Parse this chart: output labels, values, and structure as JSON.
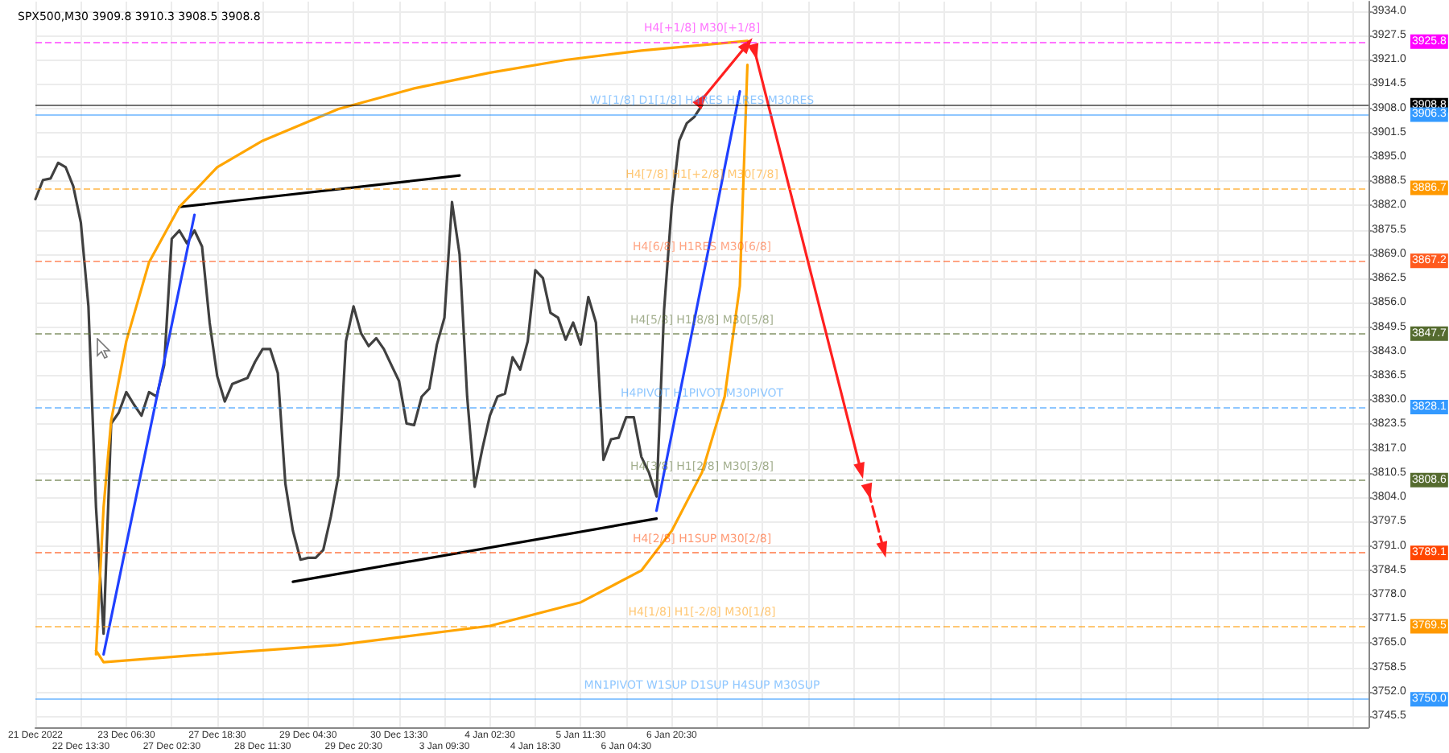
{
  "chart_data": {
    "type": "line",
    "title": "SPX500,M30 3909.8 3910.3 3908.5 3908.8",
    "categories": [
      "21 Dec 2022",
      null,
      null,
      null,
      null,
      null,
      "22 Dec 13:30",
      null,
      null,
      null,
      null,
      null,
      "23 Dec 06:30",
      null,
      null,
      null,
      null,
      null,
      "27 Dec 02:30",
      null,
      null,
      null,
      null,
      null,
      "27 Dec 18:30",
      null,
      null,
      null,
      null,
      null,
      "28 Dec 11:30",
      null,
      null,
      null,
      null,
      null,
      "29 Dec 04:30",
      null,
      null,
      null,
      null,
      null,
      "29 Dec 20:30",
      null,
      null,
      null,
      null,
      null,
      "30 Dec 13:30",
      null,
      null,
      null,
      null,
      null,
      "3 Jan 09:30",
      null,
      null,
      null,
      null,
      null,
      "4 Jan 02:30",
      null,
      null,
      null,
      null,
      null,
      "4 Jan 18:30",
      null,
      null,
      null,
      null,
      null,
      "5 Jan 11:30",
      null,
      null,
      null,
      null,
      null,
      "6 Jan 04:30",
      null,
      null,
      null,
      null,
      null,
      "6 Jan 20:30",
      null,
      null,
      null,
      null,
      null,
      null,
      null,
      null,
      null,
      null,
      null,
      null,
      null,
      null,
      null,
      null,
      null,
      null,
      null,
      null,
      null,
      null,
      null,
      null,
      null,
      null,
      null,
      null,
      null,
      null,
      null,
      null,
      null,
      null,
      null,
      null,
      null,
      null,
      null,
      null,
      null,
      null,
      null,
      null,
      null,
      null,
      null,
      null,
      null,
      null,
      null,
      null,
      null,
      null,
      null,
      null,
      null,
      null,
      null,
      null,
      null,
      null,
      null,
      null,
      null,
      null,
      null,
      null,
      null,
      null,
      null,
      null,
      null,
      null,
      null,
      null,
      null,
      null,
      null,
      null,
      null,
      null,
      null,
      null,
      null,
      null,
      null,
      null,
      null,
      null,
      null,
      null
    ],
    "series": [
      {
        "color": "#404040",
        "values": [
          3883.7,
          3888.8,
          3889.2,
          3893.4,
          3892.2,
          3887.1,
          3877.4,
          3855.0,
          3801.3,
          3767.5,
          3823.7,
          3826.6,
          3832.1,
          3828.8,
          3825.8,
          3832.1,
          3830.9,
          3839.3,
          3873.1,
          3875.3,
          3871.9,
          3875.3,
          3871.0,
          3850.7,
          3836.4,
          3829.6,
          3834.3,
          3835.1,
          3835.9,
          3840.2,
          3843.6,
          3843.6,
          3837.2,
          3807.6,
          3795.0,
          3787.3,
          3787.8,
          3787.8,
          3789.9,
          3798.8,
          3809.7,
          3845.7,
          3855.0,
          3847.8,
          3844.4,
          3846.5,
          3843.6,
          3839.3,
          3835.1,
          3823.7,
          3823.3,
          3830.9,
          3833.0,
          3844.8,
          3852.0,
          3882.9,
          3868.9,
          3830.9,
          3806.8,
          3816.9,
          3825.8,
          3830.9,
          3831.7,
          3841.4,
          3838.1,
          3845.7,
          3864.7,
          3862.6,
          3853.3,
          3852.0,
          3846.1,
          3850.7,
          3844.8,
          3857.5,
          3850.7,
          3814.0,
          3819.5,
          3819.9,
          3825.4,
          3825.4,
          3814.8,
          3810.6,
          3804.2,
          3854.1,
          3881.6,
          3899.3,
          3904.0,
          3905.7,
          3908.8,
          null,
          null,
          null,
          null,
          null,
          null,
          null,
          null,
          null,
          null,
          null,
          null,
          null,
          null,
          null,
          null,
          null,
          null,
          null,
          null,
          null,
          null,
          null,
          null,
          null,
          null,
          null,
          null,
          null,
          null,
          null,
          null,
          null,
          null,
          null,
          null,
          null,
          null,
          null,
          null,
          null,
          null,
          null,
          null,
          null,
          null,
          null,
          null,
          null,
          null,
          null,
          null,
          null,
          null,
          null,
          null,
          null,
          null,
          null,
          null,
          null,
          null,
          null,
          null,
          null,
          null,
          null,
          null,
          null,
          null,
          null,
          null,
          null,
          null,
          null,
          null,
          null,
          null,
          null,
          null,
          null,
          null,
          null,
          null,
          null,
          null,
          null,
          null
        ]
      },
      {
        "color": "#2040ff",
        "values": [
          null,
          null,
          null,
          null,
          null,
          null,
          null,
          null,
          null,
          3762.0,
          null,
          null,
          null,
          null,
          null,
          null,
          null,
          null,
          null,
          null,
          null,
          3879.5,
          null,
          null,
          null,
          null,
          null,
          null,
          null,
          null,
          null,
          null,
          null,
          null,
          null,
          null,
          null,
          null,
          null,
          null,
          null,
          null,
          null,
          null,
          null,
          null,
          null,
          null,
          null,
          null,
          null,
          null,
          null,
          null,
          null,
          null,
          null,
          null,
          null,
          null,
          null,
          null,
          null,
          null,
          null,
          null,
          null,
          null,
          null,
          null,
          null,
          null,
          null,
          null,
          null,
          null,
          null,
          null,
          null,
          null,
          null,
          null,
          null,
          null,
          null,
          null,
          null,
          null,
          null,
          null,
          null,
          null,
          null,
          null,
          null,
          null,
          null,
          null,
          null,
          null,
          null,
          null,
          null,
          null,
          null,
          null,
          null,
          null,
          null,
          null,
          null,
          null,
          null,
          null,
          null,
          null,
          null,
          null,
          null,
          null,
          null,
          null,
          null,
          null,
          null,
          null,
          null,
          null,
          null,
          null,
          null,
          null,
          null,
          null,
          null,
          null,
          null,
          null,
          null,
          null,
          null,
          null,
          null,
          null,
          null,
          null,
          null,
          null,
          null,
          null,
          null,
          null,
          null,
          null,
          null,
          null,
          null,
          null,
          null,
          null,
          null,
          null,
          null,
          null,
          null,
          null,
          null,
          null,
          null,
          null,
          null,
          null,
          null,
          null,
          null,
          null,
          null
        ]
      },
      {
        "color": "#2040ff",
        "values": [
          null,
          null,
          null,
          null,
          null,
          null,
          null,
          null,
          null,
          null,
          null,
          null,
          null,
          null,
          null,
          null,
          null,
          null,
          null,
          null,
          null,
          null,
          null,
          null,
          null,
          null,
          null,
          null,
          null,
          null,
          null,
          null,
          null,
          null,
          null,
          null,
          null,
          null,
          null,
          null,
          null,
          null,
          null,
          null,
          null,
          null,
          null,
          null,
          null,
          null,
          null,
          null,
          null,
          null,
          null,
          null,
          null,
          null,
          null,
          null,
          null,
          null,
          null,
          null,
          null,
          null,
          null,
          null,
          null,
          null,
          null,
          null,
          null,
          null,
          null,
          null,
          null,
          null,
          null,
          null,
          null,
          null,
          3800.4,
          null,
          null,
          null,
          null,
          null,
          null,
          null,
          null,
          null,
          null,
          3912.5,
          null,
          null,
          null,
          null,
          null,
          null,
          null,
          null,
          null,
          null,
          null,
          null,
          null,
          null,
          null,
          null,
          null,
          null,
          null,
          null,
          null,
          null,
          null,
          null,
          null,
          null,
          null,
          null,
          null,
          null,
          null,
          null,
          null,
          null,
          null,
          null,
          null,
          null,
          null,
          null,
          null,
          null,
          null,
          null,
          null,
          null,
          null,
          null,
          null,
          null,
          null,
          null,
          null,
          null,
          null,
          null,
          null,
          null,
          null,
          null,
          null,
          null,
          null,
          null,
          null,
          null,
          null,
          null,
          null,
          null,
          null,
          null,
          null,
          null,
          null,
          null,
          null,
          null,
          null,
          null,
          null,
          null,
          null
        ]
      },
      {
        "color": "#000000",
        "values": [
          null,
          null,
          null,
          null,
          null,
          null,
          null,
          null,
          null,
          null,
          null,
          null,
          null,
          null,
          null,
          null,
          null,
          null,
          null,
          3881.6,
          null,
          null,
          null,
          null,
          null,
          null,
          null,
          null,
          null,
          null,
          null,
          null,
          null,
          null,
          null,
          null,
          null,
          null,
          null,
          null,
          null,
          null,
          null,
          null,
          null,
          null,
          null,
          null,
          null,
          null,
          null,
          null,
          null,
          null,
          null,
          null,
          3890.0,
          null,
          null,
          null,
          null,
          null,
          null,
          null,
          null,
          null,
          null,
          null,
          null,
          null,
          null,
          null,
          null,
          null,
          null,
          null,
          null,
          null,
          null,
          null,
          null,
          null,
          null,
          null,
          null,
          null,
          null,
          null,
          null,
          null,
          null,
          null,
          null,
          null,
          null,
          null,
          null,
          null,
          null,
          null,
          null,
          null,
          null,
          null,
          null,
          null,
          null,
          null,
          null,
          null,
          null,
          null,
          null,
          null,
          null,
          null,
          null,
          null,
          null,
          null,
          null,
          null,
          null,
          null,
          null,
          null,
          null,
          null,
          null,
          null,
          null,
          null,
          null,
          null,
          null,
          null,
          null,
          null,
          null,
          null,
          null,
          null,
          null,
          null,
          null,
          null,
          null,
          null,
          null,
          null,
          null,
          null,
          null,
          null,
          null,
          null,
          null,
          null,
          null,
          null,
          null,
          null,
          null,
          null,
          null,
          null,
          null,
          null,
          null,
          null,
          null,
          null,
          null,
          null,
          null,
          null,
          null
        ]
      },
      {
        "color": "#000000",
        "values": [
          null,
          null,
          null,
          null,
          null,
          null,
          null,
          null,
          null,
          null,
          null,
          null,
          null,
          null,
          null,
          null,
          null,
          null,
          null,
          null,
          null,
          null,
          null,
          null,
          null,
          null,
          null,
          null,
          null,
          null,
          null,
          null,
          null,
          null,
          3781.4,
          null,
          null,
          null,
          null,
          null,
          null,
          null,
          null,
          null,
          null,
          null,
          null,
          null,
          null,
          null,
          null,
          null,
          null,
          null,
          null,
          null,
          null,
          null,
          null,
          null,
          null,
          null,
          null,
          null,
          null,
          null,
          null,
          null,
          null,
          null,
          null,
          null,
          null,
          null,
          null,
          null,
          null,
          null,
          null,
          null,
          null,
          null,
          3798.3,
          null,
          null,
          null,
          null,
          null,
          null,
          null,
          null,
          null,
          null,
          null,
          null,
          null,
          null,
          null,
          null,
          null,
          null,
          null,
          null,
          null,
          null,
          null,
          null,
          null,
          null,
          null,
          null,
          null,
          null,
          null,
          null,
          null,
          null,
          null,
          null,
          null,
          null,
          null,
          null,
          null,
          null,
          null,
          null,
          null,
          null,
          null,
          null,
          null,
          null,
          null,
          null,
          null,
          null,
          null,
          null,
          null,
          null,
          null,
          null,
          null,
          null,
          null,
          null,
          null,
          null,
          null,
          null,
          null,
          null,
          null,
          null,
          null,
          null,
          null,
          null,
          null,
          null,
          null,
          null,
          null,
          null,
          null,
          null,
          null,
          null,
          null,
          null,
          null,
          null,
          null,
          null,
          null,
          null
        ]
      },
      {
        "color": "#ffa500",
        "values": [
          null,
          null,
          null,
          null,
          null,
          null,
          null,
          null,
          3762.0,
          3801.3,
          3824.5,
          null,
          3845.7,
          null,
          null,
          3866.8,
          null,
          null,
          null,
          3881.6,
          null,
          null,
          null,
          null,
          3892.2,
          null,
          null,
          null,
          null,
          null,
          3899.3,
          null,
          null,
          null,
          null,
          null,
          null,
          null,
          null,
          null,
          3907.8,
          null,
          null,
          null,
          null,
          null,
          null,
          null,
          null,
          null,
          3913.3,
          null,
          null,
          null,
          null,
          null,
          null,
          null,
          null,
          null,
          3917.5,
          null,
          null,
          null,
          null,
          null,
          null,
          null,
          null,
          null,
          3920.9,
          null,
          null,
          null,
          null,
          null,
          null,
          null,
          null,
          null,
          3923.4,
          null,
          null,
          null,
          null,
          null,
          null,
          null,
          null,
          null,
          null,
          null,
          null,
          null,
          3926.0,
          null,
          null,
          null,
          null,
          null,
          null,
          null,
          null,
          null,
          null,
          null,
          null,
          null,
          null,
          null,
          null,
          null,
          null,
          null,
          null,
          null,
          null,
          null,
          null,
          null,
          null,
          null,
          null,
          null,
          null,
          null,
          null,
          null,
          null,
          null,
          null,
          null,
          null,
          null,
          null,
          null,
          null,
          null,
          null,
          null,
          null,
          null,
          null,
          null,
          null,
          null,
          null,
          null,
          null,
          null,
          null,
          null,
          null,
          null,
          null,
          null,
          null,
          null,
          null,
          null,
          null,
          null,
          null,
          null,
          null,
          null,
          null,
          null,
          null,
          null,
          null,
          null,
          null,
          null,
          null,
          null,
          null
        ]
      },
      {
        "color": "#ffa500",
        "values": [
          null,
          null,
          null,
          null,
          null,
          null,
          null,
          null,
          3763.0,
          3759.9,
          null,
          null,
          null,
          null,
          null,
          null,
          null,
          null,
          null,
          null,
          3761.6,
          null,
          null,
          null,
          null,
          null,
          null,
          null,
          null,
          null,
          null,
          null,
          null,
          null,
          null,
          null,
          null,
          null,
          null,
          null,
          3764.5,
          null,
          null,
          null,
          null,
          null,
          null,
          null,
          null,
          null,
          null,
          null,
          null,
          null,
          null,
          null,
          null,
          null,
          null,
          null,
          3769.6,
          null,
          null,
          null,
          null,
          null,
          null,
          null,
          null,
          null,
          null,
          null,
          3775.9,
          null,
          null,
          null,
          null,
          null,
          null,
          null,
          3784.4,
          null,
          null,
          null,
          3795.0,
          null,
          null,
          null,
          3810.6,
          null,
          null,
          3830.9,
          null,
          3860.5,
          3919.6,
          null,
          null,
          null,
          null,
          null,
          null,
          null,
          null,
          null,
          null,
          null,
          null,
          null,
          null,
          null,
          null,
          null,
          null,
          null,
          null,
          null,
          null,
          null,
          null,
          null,
          null,
          null,
          null,
          null,
          null,
          null,
          null,
          null,
          null,
          null,
          null,
          null,
          null,
          null,
          null,
          null,
          null,
          null,
          null,
          null,
          null,
          null,
          null,
          null,
          null,
          null,
          null,
          null,
          null,
          null,
          null,
          null,
          null,
          null,
          null,
          null,
          null,
          null,
          null,
          null,
          null,
          null,
          null,
          null,
          null,
          null,
          null,
          null,
          null,
          null,
          null,
          null,
          null,
          null,
          null,
          null,
          null
        ]
      },
      {
        "color": "#ff2020",
        "marker": "triangle",
        "values": [
          null,
          null,
          null,
          null,
          null,
          null,
          null,
          null,
          null,
          null,
          null,
          null,
          null,
          null,
          null,
          null,
          null,
          null,
          null,
          null,
          null,
          null,
          null,
          null,
          null,
          null,
          null,
          null,
          null,
          null,
          null,
          null,
          null,
          null,
          null,
          null,
          null,
          null,
          null,
          null,
          null,
          null,
          null,
          null,
          null,
          null,
          null,
          null,
          null,
          null,
          null,
          null,
          null,
          null,
          null,
          null,
          null,
          null,
          null,
          null,
          null,
          null,
          null,
          null,
          null,
          null,
          null,
          null,
          null,
          null,
          null,
          null,
          null,
          null,
          null,
          null,
          null,
          null,
          null,
          null,
          null,
          null,
          null,
          null,
          null,
          null,
          null,
          null,
          3910.3,
          null,
          null,
          null,
          null,
          null,
          3925.1,
          null,
          null,
          null,
          null,
          null,
          null,
          null,
          null,
          null,
          null,
          null,
          null,
          null,
          null,
          null,
          null,
          null,
          null,
          null,
          null,
          null,
          null,
          null,
          null,
          null,
          null,
          null,
          null,
          null,
          null,
          null,
          null,
          null,
          null,
          null,
          null,
          null,
          null,
          null,
          null,
          null,
          null,
          null,
          null,
          null,
          null,
          null,
          null,
          null,
          null,
          null,
          null,
          null,
          null,
          null,
          null,
          null,
          null,
          null,
          null,
          null,
          null,
          null,
          null,
          null,
          null,
          null,
          null,
          null,
          null,
          null,
          null,
          null,
          null,
          null,
          null,
          null,
          null,
          null,
          null,
          null,
          null
        ]
      },
      {
        "color": "#ff2020",
        "marker": "triangle",
        "values": [
          null,
          null,
          null,
          null,
          null,
          null,
          null,
          null,
          null,
          null,
          null,
          null,
          null,
          null,
          null,
          null,
          null,
          null,
          null,
          null,
          null,
          null,
          null,
          null,
          null,
          null,
          null,
          null,
          null,
          null,
          null,
          null,
          null,
          null,
          null,
          null,
          null,
          null,
          null,
          null,
          null,
          null,
          null,
          null,
          null,
          null,
          null,
          null,
          null,
          null,
          null,
          null,
          null,
          null,
          null,
          null,
          null,
          null,
          null,
          null,
          null,
          null,
          null,
          null,
          null,
          null,
          null,
          null,
          null,
          null,
          null,
          null,
          null,
          null,
          null,
          null,
          null,
          null,
          null,
          null,
          null,
          null,
          null,
          null,
          null,
          null,
          null,
          null,
          null,
          null,
          null,
          null,
          null,
          null,
          null,
          3923.0,
          null,
          null,
          null,
          null,
          null,
          null,
          null,
          null,
          null,
          null,
          null,
          null,
          null,
          3811.0,
          null,
          null,
          null,
          null,
          null,
          null,
          null,
          null,
          null,
          null,
          null,
          null,
          null,
          null,
          null,
          null,
          null,
          null,
          null,
          null,
          null,
          null,
          null,
          null,
          null,
          null,
          null,
          null,
          null,
          null,
          null,
          null,
          null,
          null,
          null,
          null,
          null,
          null,
          null,
          null,
          null,
          null,
          null,
          null,
          null,
          null,
          null,
          null,
          null,
          null,
          null,
          null,
          null,
          null,
          null,
          null,
          null,
          null,
          null,
          null,
          null,
          null,
          null,
          null,
          null,
          null,
          null
        ]
      },
      {
        "color": "#ff2020",
        "marker": "triangle",
        "line_style": "dashed",
        "values": [
          null,
          null,
          null,
          null,
          null,
          null,
          null,
          null,
          null,
          null,
          null,
          null,
          null,
          null,
          null,
          null,
          null,
          null,
          null,
          null,
          null,
          null,
          null,
          null,
          null,
          null,
          null,
          null,
          null,
          null,
          null,
          null,
          null,
          null,
          null,
          null,
          null,
          null,
          null,
          null,
          null,
          null,
          null,
          null,
          null,
          null,
          null,
          null,
          null,
          null,
          null,
          null,
          null,
          null,
          null,
          null,
          null,
          null,
          null,
          null,
          null,
          null,
          null,
          null,
          null,
          null,
          null,
          null,
          null,
          null,
          null,
          null,
          null,
          null,
          null,
          null,
          null,
          null,
          null,
          null,
          null,
          null,
          null,
          null,
          null,
          null,
          null,
          null,
          null,
          null,
          null,
          null,
          null,
          null,
          null,
          null,
          null,
          null,
          null,
          null,
          null,
          null,
          null,
          null,
          null,
          null,
          null,
          null,
          null,
          null,
          3805.5,
          null,
          3789.9,
          null,
          null,
          null,
          null,
          null,
          null,
          null,
          null,
          null,
          null,
          null,
          null,
          null,
          null,
          null,
          null,
          null,
          null,
          null,
          null,
          null,
          null,
          null,
          null,
          null,
          null,
          null,
          null,
          null,
          null,
          null,
          null,
          null,
          null,
          null,
          null,
          null,
          null,
          null,
          null,
          null,
          null,
          null,
          null,
          null,
          null,
          null,
          null,
          null,
          null,
          null,
          null,
          null,
          null,
          null,
          null,
          null,
          null,
          null,
          null,
          null,
          null,
          null,
          null
        ]
      }
    ],
    "ylim": [
      3742.5,
      3936.5
    ],
    "yticks": [
      {
        "value": 3745.5,
        "label": "3745.5"
      },
      {
        "value": 3752,
        "label": "3752.0"
      },
      {
        "value": 3758.5,
        "label": "3758.5"
      },
      {
        "value": 3765,
        "label": "3765.0"
      },
      {
        "value": 3771.5,
        "label": "3771.5"
      },
      {
        "value": 3778,
        "label": "3778.0"
      },
      {
        "value": 3784.5,
        "label": "3784.5"
      },
      {
        "value": 3791,
        "label": "3791.0"
      },
      {
        "value": 3797.5,
        "label": "3797.5"
      },
      {
        "value": 3804,
        "label": "3804.0"
      },
      {
        "value": 3810.5,
        "label": "3810.5"
      },
      {
        "value": 3817,
        "label": "3817.0"
      },
      {
        "value": 3823.5,
        "label": "3823.5"
      },
      {
        "value": 3830,
        "label": "3830.0"
      },
      {
        "value": 3836.5,
        "label": "3836.5"
      },
      {
        "value": 3843,
        "label": "3843.0"
      },
      {
        "value": 3849.5,
        "label": "3849.5"
      },
      {
        "value": 3856,
        "label": "3856.0"
      },
      {
        "value": 3862.5,
        "label": "3862.5"
      },
      {
        "value": 3869,
        "label": "3869.0"
      },
      {
        "value": 3875.5,
        "label": "3875.5"
      },
      {
        "value": 3882,
        "label": "3882.0"
      },
      {
        "value": 3888.5,
        "label": "3888.5"
      },
      {
        "value": 3895,
        "label": "3895.0"
      },
      {
        "value": 3901.5,
        "label": "3901.5"
      },
      {
        "value": 3908,
        "label": "3908.0"
      },
      {
        "value": 3914.5,
        "label": "3914.5"
      },
      {
        "value": 3921,
        "label": "3921.0"
      },
      {
        "value": 3927.5,
        "label": "3927.5"
      },
      {
        "value": 3934,
        "label": "3934.0"
      }
    ],
    "annotations": [
      "3925.8",
      "3908.8",
      "3906.3",
      "3886.7",
      "3867.2",
      "3847.7",
      "3828.1",
      "3808.6",
      "3789.1",
      "3769.5",
      "3750.0"
    ],
    "ref_lines": [
      {
        "axis": "y",
        "value": 3925.8,
        "label": "H4[+1/8] M30[+1/8]",
        "color": "#ff00ff",
        "line_style": "dashed"
      },
      {
        "axis": "y",
        "value": 3908.8,
        "label": null,
        "color": "#000000",
        "line_style": "solid"
      },
      {
        "axis": "y",
        "value": 3906.3,
        "label": "W1[1/8] D1[1/8] H4RES H1RES M30RES",
        "color": "#3399ff",
        "line_style": "solid"
      },
      {
        "axis": "y",
        "value": 3886.7,
        "label": "H4[7/8] H1[+2/8] M30[7/8]",
        "color": "#ff9900",
        "line_style": "dashed"
      },
      {
        "axis": "y",
        "value": 3867.2,
        "label": "H4[6/8] H1RES M30[6/8]",
        "color": "#ff5a1e",
        "line_style": "dashed"
      },
      {
        "axis": "y",
        "value": 3847.7,
        "label": "H4[5/8] H1[8/8] M30[5/8]",
        "color": "#556b2f",
        "line_style": "dashed"
      },
      {
        "axis": "y",
        "value": 3828.1,
        "label": "H4PIVOT H1PIVOT M30PIVOT",
        "color": "#3399ff",
        "line_style": "dashed"
      },
      {
        "axis": "y",
        "value": 3808.6,
        "label": "H4[3/8] H1[2/8] M30[3/8]",
        "color": "#556b2f",
        "line_style": "dashed"
      },
      {
        "axis": "y",
        "value": 3789.1,
        "label": "H4[2/8] H1SUP M30[2/8]",
        "color": "#ff4500",
        "line_style": "dashed"
      },
      {
        "axis": "y",
        "value": 3769.5,
        "label": "H4[1/8] H1[-2/8] M30[1/8]",
        "color": "#ff9900",
        "line_style": "dashed"
      },
      {
        "axis": "y",
        "value": 3750.0,
        "label": "MN1PIVOT W1SUP D1SUP H4SUP M30SUP",
        "color": "#3399ff",
        "line_style": "solid"
      }
    ],
    "grid": true
  }
}
